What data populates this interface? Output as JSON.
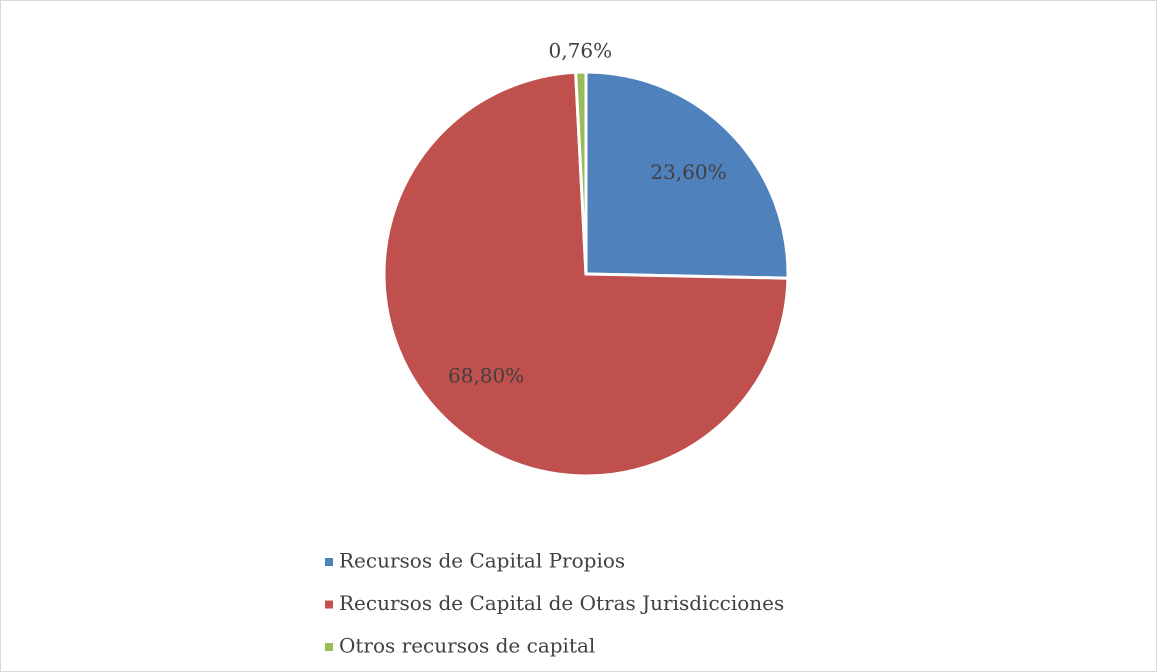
{
  "chart_data": {
    "type": "pie",
    "categories": [
      "Recursos de Capital Propios",
      "Recursos de Capital de Otras Jurisdicciones",
      "Otros recursos de capital"
    ],
    "values": [
      23.6,
      68.8,
      0.76
    ],
    "value_labels": [
      "23,60%",
      "68,80%",
      "0,76%"
    ],
    "colors": [
      "#4f81bd",
      "#c0504d",
      "#9bbb59"
    ],
    "legend": "bottom"
  }
}
